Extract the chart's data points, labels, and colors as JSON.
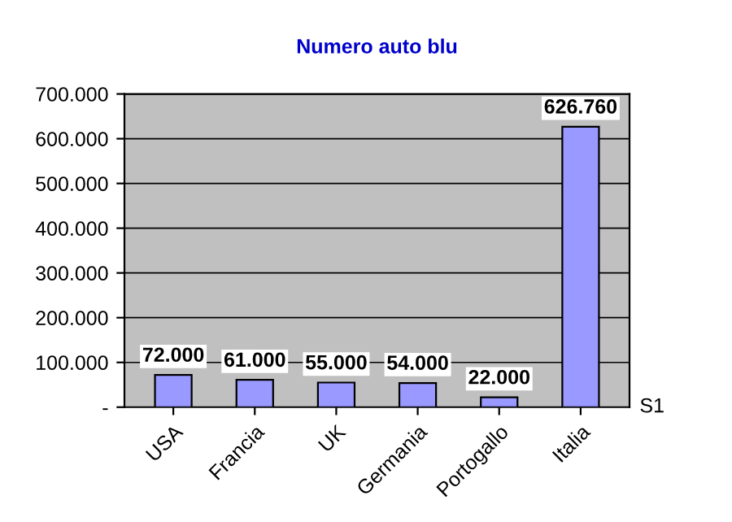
{
  "chart_data": {
    "type": "bar",
    "title": "Numero auto blu",
    "categories": [
      "USA",
      "Francia",
      "UK",
      "Germania",
      "Portogallo",
      "Italia"
    ],
    "series": [
      {
        "name": "S1",
        "color": "#9999ff",
        "values": [
          72000,
          61000,
          55000,
          54000,
          22000,
          626760
        ],
        "value_labels": [
          "72.000",
          "61.000",
          "55.000",
          "54.000",
          "22.000",
          "626.760"
        ]
      }
    ],
    "ylim": [
      0,
      700000
    ],
    "yticks": [
      {
        "value": 0,
        "label": "-"
      },
      {
        "value": 100000,
        "label": "100.000"
      },
      {
        "value": 200000,
        "label": "200.000"
      },
      {
        "value": 300000,
        "label": "300.000"
      },
      {
        "value": 400000,
        "label": "400.000"
      },
      {
        "value": 500000,
        "label": "500.000"
      },
      {
        "value": 600000,
        "label": "600.000"
      },
      {
        "value": 700000,
        "label": "700.000"
      }
    ],
    "grid": "y",
    "legend": false
  }
}
